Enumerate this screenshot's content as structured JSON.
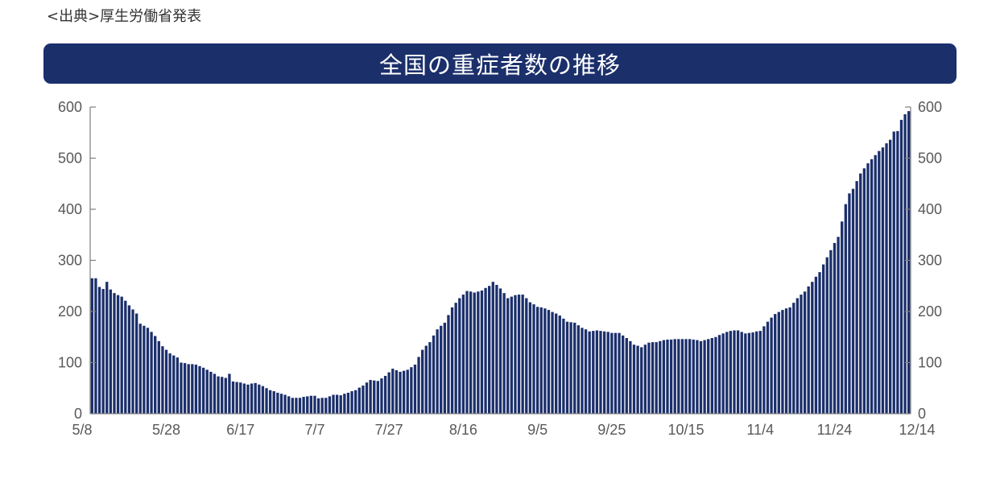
{
  "source_label": "<出典>厚生労働省発表",
  "colors": {
    "bar": "#1b2f6b",
    "title_bg": "#1b2f6b",
    "axis": "#7f7f7f"
  },
  "chart_data": {
    "type": "bar",
    "title": "全国の重症者数の推移",
    "xlabel": "",
    "ylabel": "",
    "ylim": [
      0,
      600
    ],
    "y_ticks": [
      0,
      100,
      200,
      300,
      400,
      500,
      600
    ],
    "x_tick_labels": [
      "5/8",
      "5/28",
      "6/17",
      "7/7",
      "7/27",
      "8/16",
      "9/5",
      "9/25",
      "10/15",
      "11/4",
      "11/24",
      "12/14"
    ],
    "start_date": "5/8",
    "end_date": "12/14",
    "grid": false,
    "legend": "none",
    "secondary_y_axis": true,
    "anchors": [
      [
        "5/8",
        265
      ],
      [
        "5/9",
        265
      ],
      [
        "5/10",
        248
      ],
      [
        "5/11",
        244
      ],
      [
        "5/12",
        258
      ],
      [
        "5/13",
        243
      ],
      [
        "5/14",
        236
      ],
      [
        "5/15",
        232
      ],
      [
        "5/16",
        229
      ],
      [
        "5/18",
        212
      ],
      [
        "5/20",
        196
      ],
      [
        "5/21",
        176
      ],
      [
        "5/23",
        168
      ],
      [
        "5/25",
        152
      ],
      [
        "5/27",
        132
      ],
      [
        "5/29",
        118
      ],
      [
        "5/31",
        110
      ],
      [
        "6/1",
        100
      ],
      [
        "6/3",
        97
      ],
      [
        "6/5",
        96
      ],
      [
        "6/7",
        90
      ],
      [
        "6/9",
        82
      ],
      [
        "6/11",
        73
      ],
      [
        "6/13",
        70
      ],
      [
        "6/14",
        78
      ],
      [
        "6/15",
        63
      ],
      [
        "6/17",
        61
      ],
      [
        "6/19",
        57
      ],
      [
        "6/21",
        60
      ],
      [
        "6/23",
        54
      ],
      [
        "6/25",
        46
      ],
      [
        "6/27",
        41
      ],
      [
        "6/29",
        37
      ],
      [
        "7/1",
        31
      ],
      [
        "7/3",
        31
      ],
      [
        "7/5",
        34
      ],
      [
        "7/7",
        35
      ],
      [
        "7/8",
        30
      ],
      [
        "7/10",
        31
      ],
      [
        "7/12",
        37
      ],
      [
        "7/14",
        36
      ],
      [
        "7/16",
        41
      ],
      [
        "7/18",
        46
      ],
      [
        "7/20",
        55
      ],
      [
        "7/22",
        66
      ],
      [
        "7/24",
        64
      ],
      [
        "7/26",
        74
      ],
      [
        "7/28",
        88
      ],
      [
        "7/30",
        82
      ],
      [
        "8/1",
        86
      ],
      [
        "8/3",
        96
      ],
      [
        "8/5",
        125
      ],
      [
        "8/7",
        140
      ],
      [
        "8/9",
        165
      ],
      [
        "8/11",
        178
      ],
      [
        "8/13",
        208
      ],
      [
        "8/15",
        226
      ],
      [
        "8/17",
        240
      ],
      [
        "8/19",
        237
      ],
      [
        "8/21",
        241
      ],
      [
        "8/23",
        250
      ],
      [
        "8/24",
        258
      ],
      [
        "8/26",
        245
      ],
      [
        "8/28",
        226
      ],
      [
        "8/30",
        232
      ],
      [
        "9/1",
        233
      ],
      [
        "9/3",
        218
      ],
      [
        "9/5",
        209
      ],
      [
        "9/7",
        206
      ],
      [
        "9/9",
        199
      ],
      [
        "9/11",
        192
      ],
      [
        "9/13",
        180
      ],
      [
        "9/15",
        178
      ],
      [
        "9/17",
        168
      ],
      [
        "9/19",
        161
      ],
      [
        "9/21",
        163
      ],
      [
        "9/23",
        161
      ],
      [
        "9/25",
        158
      ],
      [
        "9/27",
        158
      ],
      [
        "9/29",
        148
      ],
      [
        "10/1",
        135
      ],
      [
        "10/3",
        130
      ],
      [
        "10/5",
        139
      ],
      [
        "10/7",
        140
      ],
      [
        "10/9",
        144
      ],
      [
        "10/11",
        145
      ],
      [
        "10/13",
        146
      ],
      [
        "10/15",
        146
      ],
      [
        "10/17",
        145
      ],
      [
        "10/19",
        142
      ],
      [
        "10/21",
        146
      ],
      [
        "10/23",
        150
      ],
      [
        "10/25",
        157
      ],
      [
        "10/27",
        162
      ],
      [
        "10/29",
        163
      ],
      [
        "10/31",
        157
      ],
      [
        "11/2",
        159
      ],
      [
        "11/4",
        162
      ],
      [
        "11/6",
        180
      ],
      [
        "11/8",
        195
      ],
      [
        "11/10",
        203
      ],
      [
        "11/12",
        208
      ],
      [
        "11/14",
        226
      ],
      [
        "11/16",
        239
      ],
      [
        "11/18",
        258
      ],
      [
        "11/20",
        277
      ],
      [
        "11/22",
        306
      ],
      [
        "11/24",
        334
      ],
      [
        "11/25",
        346
      ],
      [
        "11/26",
        376
      ],
      [
        "11/27",
        410
      ],
      [
        "11/28",
        431
      ],
      [
        "11/29",
        440
      ],
      [
        "12/1",
        470
      ],
      [
        "12/3",
        490
      ],
      [
        "12/5",
        506
      ],
      [
        "12/7",
        521
      ],
      [
        "12/9",
        536
      ],
      [
        "12/10",
        552
      ],
      [
        "12/11",
        553
      ],
      [
        "12/12",
        575
      ],
      [
        "12/13",
        586
      ],
      [
        "12/14",
        592
      ]
    ]
  }
}
